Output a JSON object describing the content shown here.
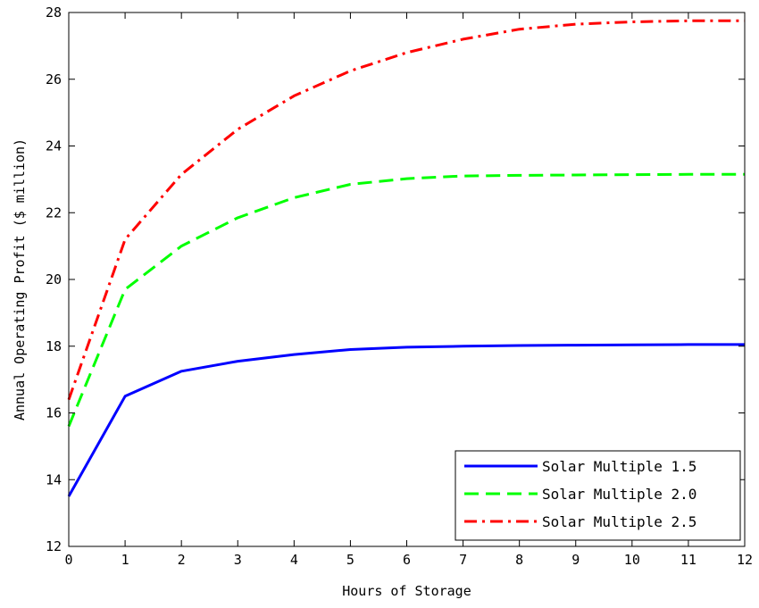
{
  "chart_data": {
    "type": "line",
    "title": "",
    "xlabel": "Hours of Storage",
    "ylabel": "Annual Operating Profit ($ million)",
    "xlim": [
      0,
      12
    ],
    "ylim": [
      12,
      28
    ],
    "xticks": [
      0,
      1,
      2,
      3,
      4,
      5,
      6,
      7,
      8,
      9,
      10,
      11,
      12
    ],
    "yticks": [
      12,
      14,
      16,
      18,
      20,
      22,
      24,
      26,
      28
    ],
    "grid": false,
    "legend_position": "bottom-right",
    "x": [
      0,
      1,
      2,
      3,
      4,
      5,
      6,
      7,
      8,
      9,
      10,
      11,
      12
    ],
    "series": [
      {
        "name": "Solar Multiple 1.5",
        "color": "#0000ff",
        "style": "solid",
        "values": [
          13.5,
          16.5,
          17.25,
          17.55,
          17.75,
          17.9,
          17.97,
          18.0,
          18.02,
          18.03,
          18.04,
          18.05,
          18.05
        ]
      },
      {
        "name": "Solar Multiple 2.0",
        "color": "#00ff00",
        "style": "dashed",
        "values": [
          15.6,
          19.7,
          21.0,
          21.85,
          22.45,
          22.85,
          23.02,
          23.1,
          23.12,
          23.13,
          23.14,
          23.15,
          23.15
        ]
      },
      {
        "name": "Solar Multiple 2.5",
        "color": "#ff0000",
        "style": "dashdot",
        "values": [
          16.4,
          21.2,
          23.15,
          24.5,
          25.5,
          26.25,
          26.8,
          27.2,
          27.5,
          27.65,
          27.72,
          27.75,
          27.75
        ]
      }
    ]
  }
}
